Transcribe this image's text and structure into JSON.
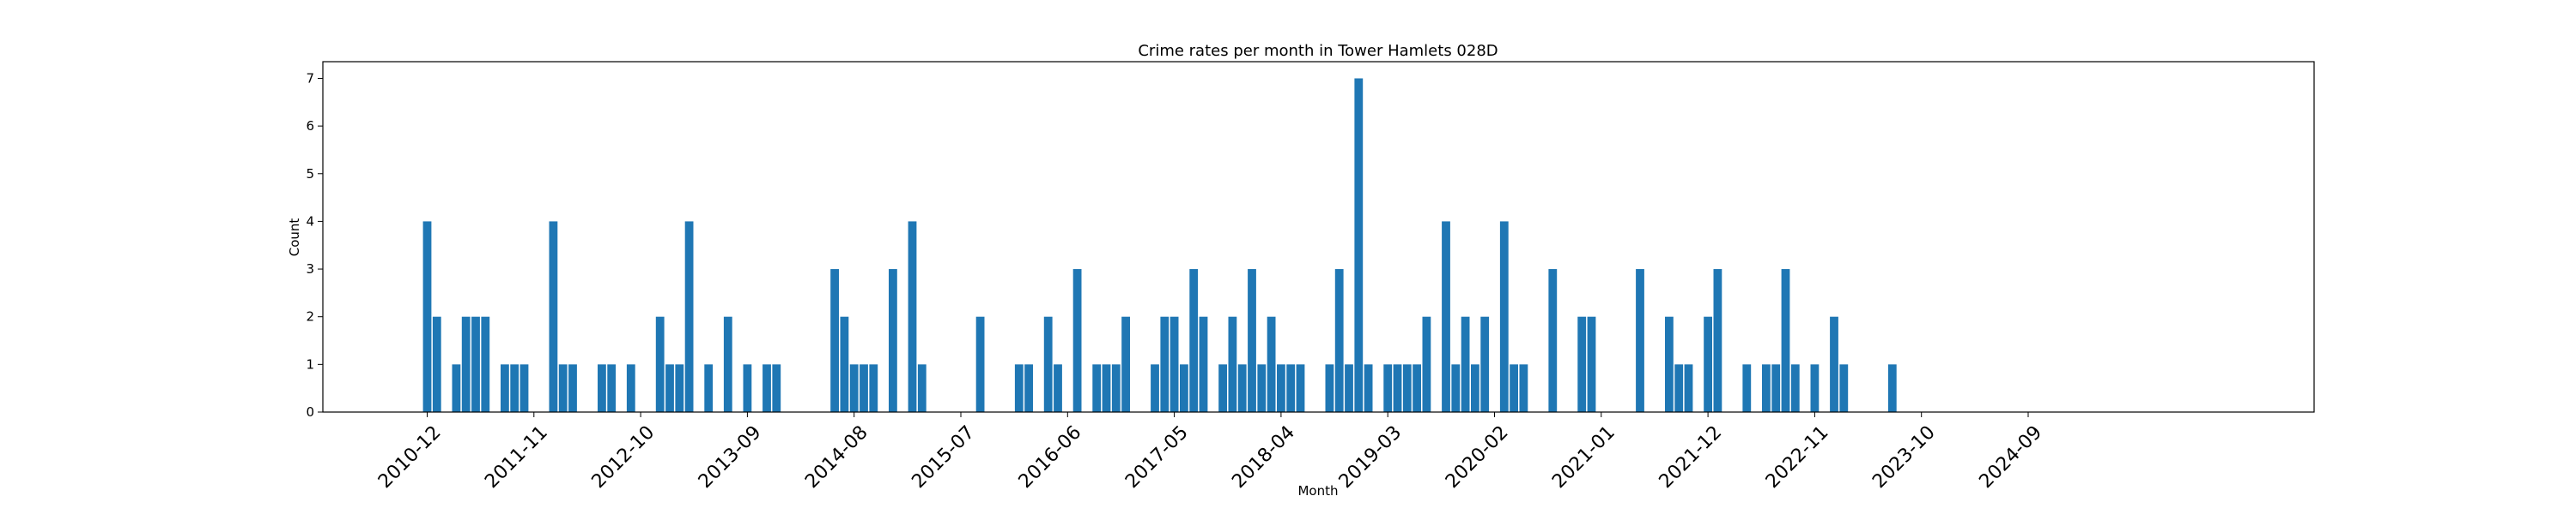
{
  "chart_data": {
    "type": "bar",
    "title": "Crime rates per month in Tower Hamlets 028D",
    "xlabel": "Month",
    "ylabel": "Count",
    "ylim": [
      0,
      7.35
    ],
    "y_ticks": [
      0,
      1,
      2,
      3,
      4,
      5,
      6,
      7
    ],
    "x_tick_labels": [
      "2010-12",
      "2011-11",
      "2012-10",
      "2013-09",
      "2014-08",
      "2015-07",
      "2016-06",
      "2017-05",
      "2018-04",
      "2019-03",
      "2020-02",
      "2021-01",
      "2021-12",
      "2022-11",
      "2023-10",
      "2024-09"
    ],
    "color": "#1f77b4",
    "grid": false,
    "x": [
      "2010-12",
      "2011-01",
      "2011-03",
      "2011-04",
      "2011-05",
      "2011-06",
      "2011-08",
      "2011-09",
      "2011-10",
      "2012-01",
      "2012-02",
      "2012-03",
      "2012-06",
      "2012-07",
      "2012-09",
      "2012-12",
      "2013-01",
      "2013-02",
      "2013-03",
      "2013-05",
      "2013-07",
      "2013-09",
      "2013-11",
      "2013-12",
      "2014-06",
      "2014-07",
      "2014-08",
      "2014-09",
      "2014-10",
      "2014-12",
      "2015-02",
      "2015-03",
      "2015-09",
      "2016-01",
      "2016-02",
      "2016-04",
      "2016-05",
      "2016-07",
      "2016-09",
      "2016-10",
      "2016-11",
      "2016-12",
      "2017-03",
      "2017-04",
      "2017-05",
      "2017-06",
      "2017-07",
      "2017-08",
      "2017-10",
      "2017-11",
      "2017-12",
      "2018-01",
      "2018-02",
      "2018-03",
      "2018-04",
      "2018-05",
      "2018-06",
      "2018-09",
      "2018-10",
      "2018-11",
      "2018-12",
      "2019-01",
      "2019-03",
      "2019-04",
      "2019-05",
      "2019-06",
      "2019-07",
      "2019-09",
      "2019-10",
      "2019-11",
      "2019-12",
      "2020-01",
      "2020-03",
      "2020-04",
      "2020-05",
      "2020-08",
      "2020-11",
      "2020-12",
      "2021-05",
      "2021-08",
      "2021-09",
      "2021-10",
      "2021-12",
      "2022-01",
      "2022-04",
      "2022-06",
      "2022-07",
      "2022-08",
      "2022-09",
      "2022-11",
      "2023-01",
      "2023-02",
      "2023-07"
    ],
    "values": [
      4,
      2,
      1,
      2,
      2,
      2,
      1,
      1,
      1,
      4,
      1,
      1,
      1,
      1,
      1,
      2,
      1,
      1,
      4,
      1,
      2,
      1,
      1,
      1,
      3,
      2,
      1,
      1,
      1,
      3,
      4,
      1,
      2,
      1,
      1,
      2,
      1,
      3,
      1,
      1,
      1,
      2,
      1,
      2,
      2,
      1,
      3,
      2,
      1,
      2,
      1,
      3,
      1,
      2,
      1,
      1,
      1,
      1,
      3,
      1,
      7,
      1,
      1,
      1,
      1,
      1,
      2,
      4,
      1,
      2,
      1,
      2,
      4,
      1,
      1,
      3,
      2,
      2,
      3,
      2,
      1,
      1,
      2,
      3,
      1,
      1,
      1,
      3,
      1,
      1,
      2,
      1,
      1
    ]
  }
}
